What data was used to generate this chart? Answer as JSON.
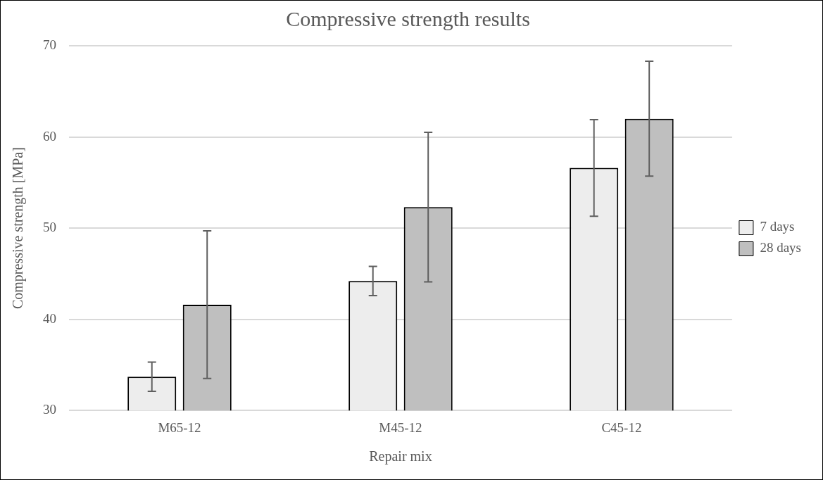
{
  "chart_data": {
    "type": "bar",
    "title": "Compressive strength results",
    "xlabel": "Repair mix",
    "ylabel": "Compressive strength [MPa]",
    "categories": [
      "M65-12",
      "M45-12",
      "C45-12"
    ],
    "series": [
      {
        "name": "7 days",
        "color": "#ededed",
        "values": [
          33.7,
          44.2,
          56.6
        ],
        "errors": [
          1.6,
          1.6,
          5.3
        ]
      },
      {
        "name": "28 days",
        "color": "#bfbfbf",
        "values": [
          41.6,
          52.3,
          62.0
        ],
        "errors": [
          8.1,
          8.2,
          6.3
        ]
      }
    ],
    "ylim": [
      30,
      70
    ],
    "yticks": [
      30,
      40,
      50,
      60,
      70
    ],
    "grid": "y",
    "legend": "right"
  }
}
